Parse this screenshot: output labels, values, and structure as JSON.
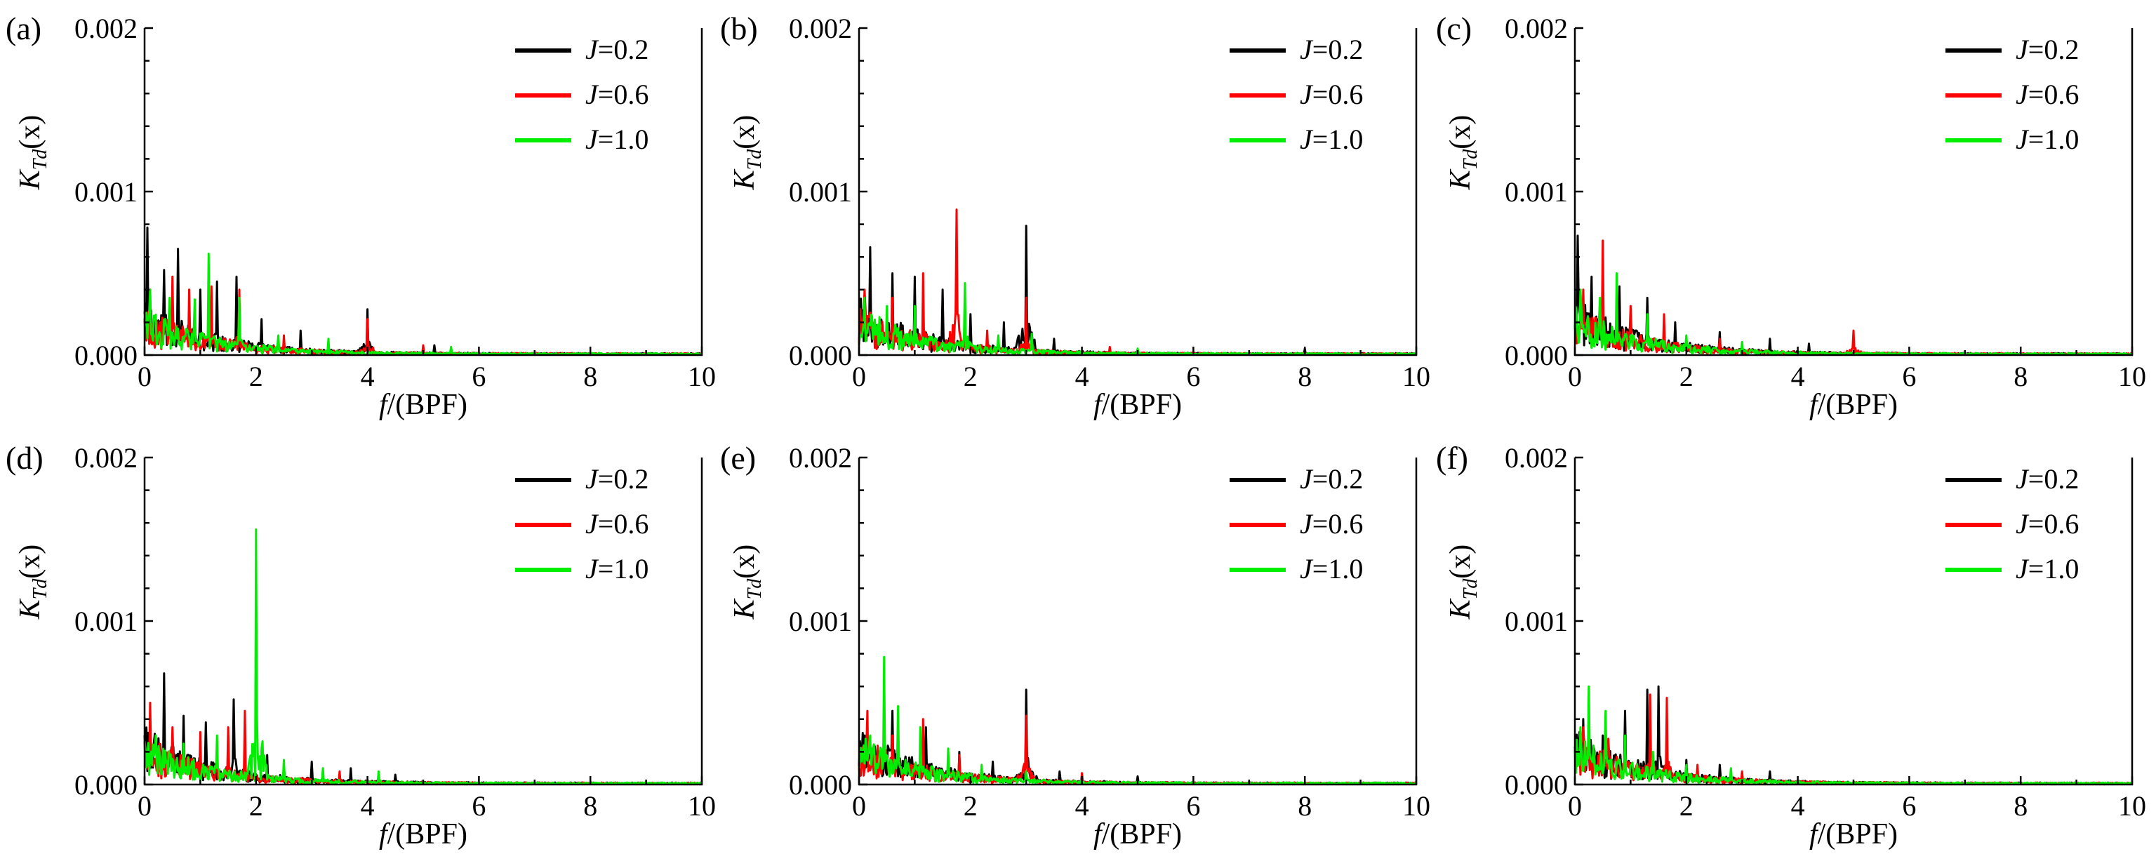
{
  "chart_data": [
    {
      "type": "line",
      "panel_label": "(a)",
      "xlabel_italic": "f",
      "xlabel_rest": "/(BPF)",
      "ylabel_main": "K",
      "ylabel_sub": "Td",
      "ylabel_rest": "(x)",
      "xlim": [
        0,
        10
      ],
      "ylim": [
        0,
        0.002
      ],
      "x_ticks": [
        "0",
        "2",
        "4",
        "6",
        "8",
        "10"
      ],
      "y_ticks": [
        "0.000",
        "0.001",
        "0.002"
      ],
      "legend": "top-right",
      "series": [
        {
          "name": "J=0.2",
          "color": "#000000",
          "peaks": [
            [
              0.05,
              0.00078
            ],
            [
              0.35,
              0.00052
            ],
            [
              0.6,
              0.00065
            ],
            [
              1.0,
              0.0004
            ],
            [
              1.3,
              0.00045
            ],
            [
              1.65,
              0.00048
            ],
            [
              2.1,
              0.00022
            ],
            [
              2.8,
              0.00015
            ],
            [
              4.0,
              0.00028
            ],
            [
              5.2,
              6e-05
            ]
          ]
        },
        {
          "name": "J=0.6",
          "color": "#ff0000",
          "peaks": [
            [
              0.1,
              0.0004
            ],
            [
              0.5,
              0.00048
            ],
            [
              0.8,
              0.0004
            ],
            [
              1.2,
              0.00042
            ],
            [
              1.7,
              0.0004
            ],
            [
              2.5,
              0.00012
            ],
            [
              4.0,
              0.00022
            ],
            [
              5.0,
              6e-05
            ]
          ]
        },
        {
          "name": "J=1.0",
          "color": "#00ee00",
          "peaks": [
            [
              0.1,
              0.0004
            ],
            [
              0.45,
              0.00035
            ],
            [
              0.9,
              0.00034
            ],
            [
              1.15,
              0.00062
            ],
            [
              1.7,
              0.00035
            ],
            [
              2.4,
              0.00012
            ],
            [
              3.3,
              0.0001
            ],
            [
              5.5,
              5e-05
            ]
          ]
        }
      ]
    },
    {
      "type": "line",
      "panel_label": "(b)",
      "xlabel_italic": "f",
      "xlabel_rest": "/(BPF)",
      "ylabel_main": "K",
      "ylabel_sub": "Td",
      "ylabel_rest": "(x)",
      "xlim": [
        0,
        10
      ],
      "ylim": [
        0,
        0.002
      ],
      "x_ticks": [
        "0",
        "2",
        "4",
        "6",
        "8",
        "10"
      ],
      "y_ticks": [
        "0.000",
        "0.001",
        "0.002"
      ],
      "legend": "top-right",
      "series": [
        {
          "name": "J=0.2",
          "color": "#000000",
          "peaks": [
            [
              0.2,
              0.00066
            ],
            [
              0.6,
              0.0005
            ],
            [
              1.0,
              0.00048
            ],
            [
              1.5,
              0.0004
            ],
            [
              2.0,
              0.00025
            ],
            [
              2.6,
              0.0002
            ],
            [
              3.0,
              0.00079
            ],
            [
              3.5,
              0.0001
            ],
            [
              8.0,
              4e-05
            ]
          ]
        },
        {
          "name": "J=0.6",
          "color": "#ff0000",
          "peaks": [
            [
              0.1,
              0.0004
            ],
            [
              0.6,
              0.00035
            ],
            [
              1.15,
              0.0005
            ],
            [
              1.75,
              0.00089
            ],
            [
              2.3,
              0.00015
            ],
            [
              3.0,
              0.00035
            ],
            [
              4.5,
              5e-05
            ]
          ]
        },
        {
          "name": "J=1.0",
          "color": "#00ee00",
          "peaks": [
            [
              0.1,
              0.00035
            ],
            [
              0.5,
              0.0003
            ],
            [
              1.0,
              0.0003
            ],
            [
              1.9,
              0.00044
            ],
            [
              2.5,
              0.00012
            ],
            [
              3.1,
              0.00013
            ],
            [
              5.0,
              4e-05
            ]
          ]
        }
      ]
    },
    {
      "type": "line",
      "panel_label": "(c)",
      "xlabel_italic": "f",
      "xlabel_rest": "/(BPF)",
      "ylabel_main": "K",
      "ylabel_sub": "Td",
      "ylabel_rest": "(x)",
      "xlim": [
        0,
        10
      ],
      "ylim": [
        0,
        0.002
      ],
      "x_ticks": [
        "0",
        "2",
        "4",
        "6",
        "8",
        "10"
      ],
      "y_ticks": [
        "0.000",
        "0.001",
        "0.002"
      ],
      "legend": "top-right",
      "series": [
        {
          "name": "J=0.2",
          "color": "#000000",
          "peaks": [
            [
              0.05,
              0.00073
            ],
            [
              0.3,
              0.00048
            ],
            [
              0.8,
              0.00042
            ],
            [
              1.3,
              0.00035
            ],
            [
              1.8,
              0.0002
            ],
            [
              2.6,
              0.00014
            ],
            [
              3.5,
              0.0001
            ],
            [
              4.2,
              7e-05
            ]
          ]
        },
        {
          "name": "J=0.6",
          "color": "#ff0000",
          "peaks": [
            [
              0.15,
              0.0004
            ],
            [
              0.5,
              0.0007
            ],
            [
              1.0,
              0.0003
            ],
            [
              1.6,
              0.00025
            ],
            [
              2.6,
              0.0001
            ],
            [
              5.0,
              0.00015
            ]
          ]
        },
        {
          "name": "J=1.0",
          "color": "#00ee00",
          "peaks": [
            [
              0.1,
              0.0004
            ],
            [
              0.45,
              0.00035
            ],
            [
              0.75,
              0.0005
            ],
            [
              1.3,
              0.00025
            ],
            [
              2.0,
              0.00012
            ],
            [
              3.0,
              8e-05
            ]
          ]
        }
      ]
    },
    {
      "type": "line",
      "panel_label": "(d)",
      "xlabel_italic": "f",
      "xlabel_rest": "/(BPF)",
      "ylabel_main": "K",
      "ylabel_sub": "Td",
      "ylabel_rest": "(x)",
      "xlim": [
        0,
        10
      ],
      "ylim": [
        0,
        0.002
      ],
      "x_ticks": [
        "0",
        "2",
        "4",
        "6",
        "8",
        "10"
      ],
      "y_ticks": [
        "0.000",
        "0.001",
        "0.002"
      ],
      "legend": "top-right",
      "series": [
        {
          "name": "J=0.2",
          "color": "#000000",
          "peaks": [
            [
              0.35,
              0.00068
            ],
            [
              0.7,
              0.00042
            ],
            [
              1.1,
              0.00038
            ],
            [
              1.6,
              0.00052
            ],
            [
              2.2,
              0.00018
            ],
            [
              3.0,
              0.00014
            ],
            [
              3.7,
              0.0001
            ],
            [
              4.5,
              6e-05
            ]
          ]
        },
        {
          "name": "J=0.6",
          "color": "#ff0000",
          "peaks": [
            [
              0.1,
              0.0005
            ],
            [
              0.5,
              0.00035
            ],
            [
              1.0,
              0.00032
            ],
            [
              1.5,
              0.00035
            ],
            [
              1.8,
              0.00045
            ],
            [
              2.5,
              0.00012
            ],
            [
              3.5,
              8e-05
            ]
          ]
        },
        {
          "name": "J=1.0",
          "color": "#00ee00",
          "peaks": [
            [
              0.2,
              0.0003
            ],
            [
              0.7,
              0.00025
            ],
            [
              1.3,
              0.0003
            ],
            [
              2.0,
              0.00156
            ],
            [
              2.5,
              0.00015
            ],
            [
              3.2,
              0.0001
            ],
            [
              4.2,
              8e-05
            ]
          ]
        }
      ]
    },
    {
      "type": "line",
      "panel_label": "(e)",
      "xlabel_italic": "f",
      "xlabel_rest": "/(BPF)",
      "ylabel_main": "K",
      "ylabel_sub": "Td",
      "ylabel_rest": "(x)",
      "xlim": [
        0,
        10
      ],
      "ylim": [
        0,
        0.002
      ],
      "x_ticks": [
        "0",
        "2",
        "4",
        "6",
        "8",
        "10"
      ],
      "y_ticks": [
        "0.000",
        "0.001",
        "0.002"
      ],
      "legend": "top-right",
      "series": [
        {
          "name": "J=0.2",
          "color": "#000000",
          "peaks": [
            [
              0.1,
              0.0003
            ],
            [
              0.6,
              0.00045
            ],
            [
              1.2,
              0.00035
            ],
            [
              1.8,
              0.0002
            ],
            [
              2.4,
              0.00014
            ],
            [
              3.0,
              0.00058
            ],
            [
              3.6,
              8e-05
            ],
            [
              5.0,
              5e-05
            ]
          ]
        },
        {
          "name": "J=0.6",
          "color": "#ff0000",
          "peaks": [
            [
              0.15,
              0.00045
            ],
            [
              0.6,
              0.0003
            ],
            [
              1.15,
              0.0004
            ],
            [
              1.8,
              0.00018
            ],
            [
              3.0,
              0.00042
            ],
            [
              4.0,
              7e-05
            ]
          ]
        },
        {
          "name": "J=1.0",
          "color": "#00ee00",
          "peaks": [
            [
              0.2,
              0.0003
            ],
            [
              0.45,
              0.00078
            ],
            [
              0.7,
              0.00048
            ],
            [
              1.1,
              0.00035
            ],
            [
              1.6,
              0.00022
            ],
            [
              2.2,
              0.00012
            ],
            [
              3.0,
              8e-05
            ]
          ]
        }
      ]
    },
    {
      "type": "line",
      "panel_label": "(f)",
      "xlabel_italic": "f",
      "xlabel_rest": "/(BPF)",
      "ylabel_main": "K",
      "ylabel_sub": "Td",
      "ylabel_rest": "(x)",
      "xlim": [
        0,
        10
      ],
      "ylim": [
        0,
        0.002
      ],
      "x_ticks": [
        "0",
        "2",
        "4",
        "6",
        "8",
        "10"
      ],
      "y_ticks": [
        "0.000",
        "0.001",
        "0.002"
      ],
      "legend": "top-right",
      "series": [
        {
          "name": "J=0.2",
          "color": "#000000",
          "peaks": [
            [
              0.15,
              0.0004
            ],
            [
              0.5,
              0.0003
            ],
            [
              0.9,
              0.00045
            ],
            [
              1.3,
              0.00058
            ],
            [
              1.5,
              0.0006
            ],
            [
              2.0,
              0.00015
            ],
            [
              2.6,
              0.00012
            ],
            [
              3.5,
              8e-05
            ]
          ]
        },
        {
          "name": "J=0.6",
          "color": "#ff0000",
          "peaks": [
            [
              0.15,
              0.00035
            ],
            [
              0.6,
              0.00028
            ],
            [
              1.35,
              0.00055
            ],
            [
              1.65,
              0.00053
            ],
            [
              2.2,
              0.00012
            ],
            [
              3.0,
              8e-05
            ]
          ]
        },
        {
          "name": "J=1.0",
          "color": "#00ee00",
          "peaks": [
            [
              0.1,
              0.00035
            ],
            [
              0.25,
              0.0006
            ],
            [
              0.55,
              0.00045
            ],
            [
              0.9,
              0.0003
            ],
            [
              1.4,
              0.0002
            ],
            [
              2.0,
              0.00012
            ],
            [
              2.8,
              0.0001
            ]
          ]
        }
      ]
    }
  ]
}
